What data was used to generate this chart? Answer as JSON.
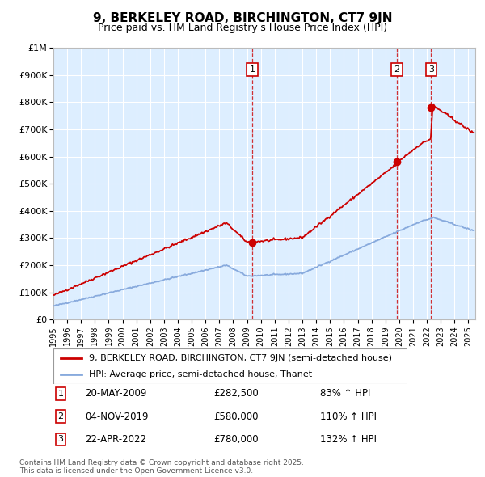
{
  "title": "9, BERKELEY ROAD, BIRCHINGTON, CT7 9JN",
  "subtitle": "Price paid vs. HM Land Registry's House Price Index (HPI)",
  "legend_line1": "9, BERKELEY ROAD, BIRCHINGTON, CT7 9JN (semi-detached house)",
  "legend_line2": "HPI: Average price, semi-detached house, Thanet",
  "footnote": "Contains HM Land Registry data © Crown copyright and database right 2025.\nThis data is licensed under the Open Government Licence v3.0.",
  "sale_markers": [
    {
      "num": 1,
      "date": "20-MAY-2009",
      "price": 282500,
      "pct": "83%",
      "x": 2009.38
    },
    {
      "num": 2,
      "date": "04-NOV-2019",
      "price": 580000,
      "pct": "110%",
      "x": 2019.84
    },
    {
      "num": 3,
      "date": "22-APR-2022",
      "price": 780000,
      "pct": "132%",
      "x": 2022.31
    }
  ],
  "ylim": [
    0,
    1000000
  ],
  "xlim": [
    1995,
    2025.5
  ],
  "red_color": "#cc0000",
  "blue_color": "#88aadd",
  "bg_color": "#ddeeff",
  "grid_color": "#ffffff",
  "marker_border": "#cc0000",
  "yticks": [
    0,
    100000,
    200000,
    300000,
    400000,
    500000,
    600000,
    700000,
    800000,
    900000,
    1000000
  ],
  "ytick_labels": [
    "£0",
    "£100K",
    "£200K",
    "£300K",
    "£400K",
    "£500K",
    "£600K",
    "£700K",
    "£800K",
    "£900K",
    "£1M"
  ]
}
